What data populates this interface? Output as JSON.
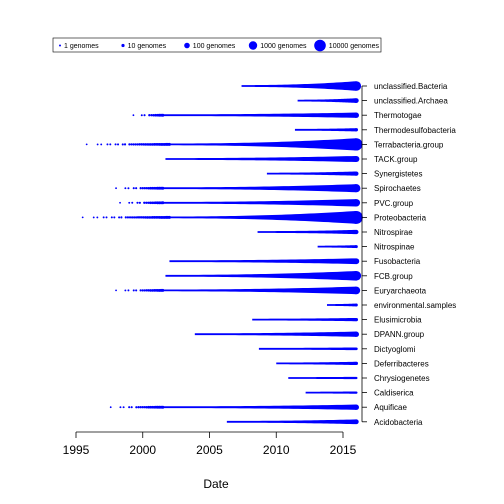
{
  "chart_data": {
    "type": "scatter",
    "xlabel": "Date",
    "ylabel": "",
    "xlim": [
      1994.3,
      2017.5
    ],
    "x_ticks": [
      1995,
      2000,
      2005,
      2010,
      2015
    ],
    "x_tick_labels": [
      "1995",
      "2000",
      "2005",
      "2010",
      "2015"
    ],
    "grid": false,
    "legend": {
      "placement": "top-left",
      "entries": [
        "1 genomes",
        "10 genomes",
        "100 genomes",
        "1000 genomes",
        "10000 genomes"
      ],
      "sizes": [
        1,
        10,
        100,
        1000,
        10000
      ]
    },
    "color": "#0000ff",
    "categories": [
      "unclassified.Bacteria",
      "unclassified.Archaea",
      "Thermotogae",
      "Thermodesulfobacteria",
      "Terrabacteria.group",
      "TACK.group",
      "Synergistetes",
      "Spirochaetes",
      "PVC.group",
      "Proteobacteria",
      "Nitrospirae",
      "Nitrospinae",
      "Fusobacteria",
      "FCB.group",
      "Euryarchaeota",
      "environmental.samples",
      "Elusimicrobia",
      "DPANN.group",
      "Dictyoglomi",
      "Deferribacteres",
      "Chrysiogenetes",
      "Caldiserica",
      "Aquificae",
      "Acidobacteria"
    ],
    "series": [
      {
        "category": "unclassified.Bacteria",
        "first_date": 2007.4,
        "scattered_from": null,
        "last_date": 2016.0,
        "final_count": 3000
      },
      {
        "category": "unclassified.Archaea",
        "first_date": 2011.6,
        "scattered_from": null,
        "last_date": 2016.0,
        "final_count": 60
      },
      {
        "category": "Thermotogae",
        "first_date": 2001.5,
        "scattered_from": 1999.3,
        "last_date": 2016.0,
        "final_count": 100
      },
      {
        "category": "Thermodesulfobacteria",
        "first_date": 2011.4,
        "scattered_from": null,
        "last_date": 2016.0,
        "final_count": 15
      },
      {
        "category": "Terrabacteria.group",
        "first_date": 2002.0,
        "scattered_from": 1995.8,
        "last_date": 2016.0,
        "final_count": 20000
      },
      {
        "category": "TACK.group",
        "first_date": 2001.7,
        "scattered_from": null,
        "last_date": 2016.0,
        "final_count": 200
      },
      {
        "category": "Synergistetes",
        "first_date": 2009.3,
        "scattered_from": null,
        "last_date": 2016.0,
        "final_count": 40
      },
      {
        "category": "Spirochaetes",
        "first_date": 2001.5,
        "scattered_from": 1998.0,
        "last_date": 2016.0,
        "final_count": 1000
      },
      {
        "category": "PVC.group",
        "first_date": 2001.5,
        "scattered_from": 1998.3,
        "last_date": 2016.0,
        "final_count": 600
      },
      {
        "category": "Proteobacteria",
        "first_date": 2002.0,
        "scattered_from": 1995.5,
        "last_date": 2016.0,
        "final_count": 30000
      },
      {
        "category": "Nitrospirae",
        "first_date": 2008.6,
        "scattered_from": null,
        "last_date": 2016.0,
        "final_count": 40
      },
      {
        "category": "Nitrospinae",
        "first_date": 2013.1,
        "scattered_from": null,
        "last_date": 2016.0,
        "final_count": 10
      },
      {
        "category": "Fusobacteria",
        "first_date": 2002.0,
        "scattered_from": null,
        "last_date": 2016.0,
        "final_count": 150
      },
      {
        "category": "FCB.group",
        "first_date": 2001.7,
        "scattered_from": null,
        "last_date": 2016.0,
        "final_count": 3000
      },
      {
        "category": "Euryarchaeota",
        "first_date": 2001.5,
        "scattered_from": 1998.0,
        "last_date": 2016.0,
        "final_count": 700
      },
      {
        "category": "environmental.samples",
        "first_date": 2013.8,
        "scattered_from": null,
        "last_date": 2016.0,
        "final_count": 10
      },
      {
        "category": "Elusimicrobia",
        "first_date": 2008.2,
        "scattered_from": null,
        "last_date": 2016.0,
        "final_count": 15
      },
      {
        "category": "DPANN.group",
        "first_date": 2003.9,
        "scattered_from": null,
        "last_date": 2016.0,
        "final_count": 100
      },
      {
        "category": "Dictyoglomi",
        "first_date": 2008.7,
        "scattered_from": null,
        "last_date": 2016.0,
        "final_count": 8
      },
      {
        "category": "Deferribacteres",
        "first_date": 2010.0,
        "scattered_from": null,
        "last_date": 2016.0,
        "final_count": 15
      },
      {
        "category": "Chrysiogenetes",
        "first_date": 2010.9,
        "scattered_from": null,
        "last_date": 2016.0,
        "final_count": 5
      },
      {
        "category": "Caldiserica",
        "first_date": 2012.2,
        "scattered_from": null,
        "last_date": 2016.0,
        "final_count": 5
      },
      {
        "category": "Aquificae",
        "first_date": 2001.5,
        "scattered_from": 1997.6,
        "last_date": 2016.0,
        "final_count": 100
      },
      {
        "category": "Acidobacteria",
        "first_date": 2006.3,
        "scattered_from": null,
        "last_date": 2016.0,
        "final_count": 60
      }
    ]
  }
}
